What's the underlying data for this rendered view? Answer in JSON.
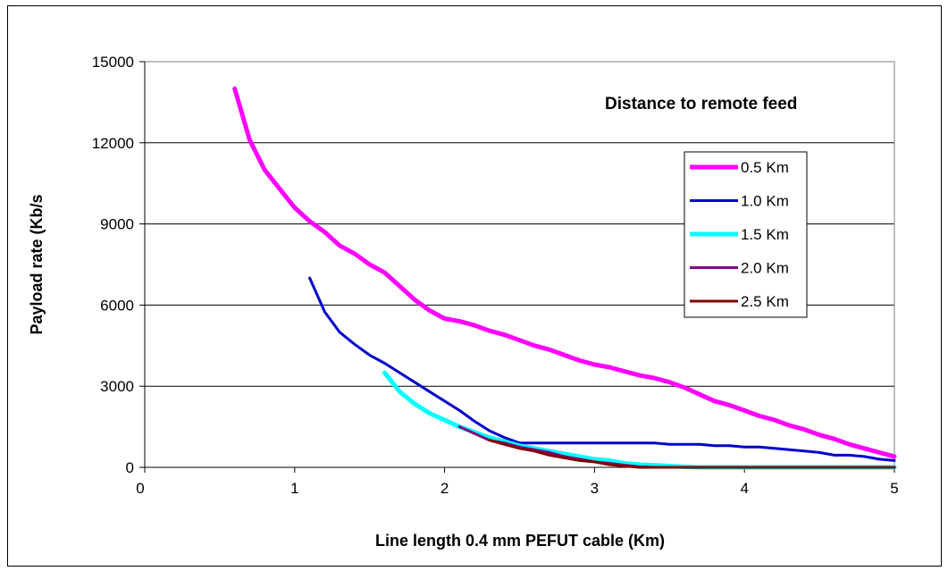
{
  "chart_data": {
    "type": "line",
    "title": "",
    "annotation": "Distance to remote feed",
    "xlabel": "Line length 0.4 mm PEFUT cable (Km)",
    "ylabel": "Payload rate (Kb/s",
    "xlim": [
      0,
      5
    ],
    "ylim": [
      0,
      15000
    ],
    "x_ticks": [
      "0",
      "1",
      "2",
      "3",
      "4",
      "5"
    ],
    "y_ticks": [
      "0",
      "3000",
      "6000",
      "9000",
      "12000",
      "15000"
    ],
    "grid": "horizontal",
    "legend_position": "right",
    "series": [
      {
        "name": "0.5 Km",
        "color": "#ff00ff",
        "x": [
          0.6,
          0.7,
          0.8,
          0.9,
          1.0,
          1.1,
          1.2,
          1.3,
          1.4,
          1.5,
          1.6,
          1.7,
          1.8,
          1.9,
          2.0,
          2.1,
          2.2,
          2.3,
          2.4,
          2.5,
          2.6,
          2.7,
          2.8,
          2.9,
          3.0,
          3.1,
          3.2,
          3.3,
          3.4,
          3.5,
          3.6,
          3.7,
          3.8,
          3.9,
          4.0,
          4.1,
          4.2,
          4.3,
          4.4,
          4.5,
          4.6,
          4.7,
          4.8,
          4.9,
          5.0
        ],
        "y": [
          14000,
          12100,
          11000,
          10300,
          9600,
          9100,
          8700,
          8200,
          7900,
          7500,
          7200,
          6700,
          6200,
          5800,
          5500,
          5400,
          5250,
          5050,
          4900,
          4700,
          4500,
          4350,
          4150,
          3950,
          3800,
          3700,
          3550,
          3400,
          3300,
          3150,
          2950,
          2700,
          2450,
          2300,
          2100,
          1900,
          1750,
          1550,
          1400,
          1200,
          1050,
          850,
          700,
          550,
          400
        ]
      },
      {
        "name": "1.0 Km",
        "color": "#0000cc",
        "x": [
          1.1,
          1.2,
          1.3,
          1.4,
          1.5,
          1.6,
          1.7,
          1.8,
          1.9,
          2.0,
          2.1,
          2.2,
          2.3,
          2.4,
          2.5,
          2.6,
          2.7,
          2.8,
          2.9,
          3.0,
          3.1,
          3.2,
          3.3,
          3.4,
          3.5,
          3.6,
          3.7,
          3.8,
          3.9,
          4.0,
          4.1,
          4.2,
          4.3,
          4.4,
          4.5,
          4.6,
          4.7,
          4.8,
          4.9,
          5.0
        ],
        "y": [
          7000,
          5750,
          5000,
          4550,
          4150,
          3850,
          3500,
          3150,
          2800,
          2450,
          2100,
          1700,
          1350,
          1100,
          900,
          900,
          900,
          900,
          900,
          900,
          900,
          900,
          900,
          900,
          850,
          850,
          850,
          800,
          800,
          750,
          750,
          700,
          650,
          600,
          550,
          450,
          450,
          400,
          300,
          250
        ]
      },
      {
        "name": "1.5 Km",
        "color": "#00ffff",
        "x": [
          1.6,
          1.7,
          1.8,
          1.9,
          2.0,
          2.1,
          2.2,
          2.3,
          2.4,
          2.5,
          2.6,
          2.7,
          2.8,
          2.9,
          3.0,
          3.1,
          3.2,
          3.3,
          3.4,
          3.5,
          3.6,
          3.7,
          3.8,
          3.9,
          4.0,
          4.1,
          4.2,
          4.3,
          4.4,
          4.5,
          4.6,
          4.7,
          4.8,
          4.9,
          5.0
        ],
        "y": [
          3500,
          2800,
          2350,
          2000,
          1750,
          1500,
          1300,
          1100,
          950,
          800,
          700,
          600,
          500,
          400,
          300,
          250,
          150,
          100,
          80,
          50,
          20,
          0,
          0,
          0,
          0,
          0,
          0,
          0,
          0,
          0,
          0,
          0,
          0,
          0,
          0
        ]
      },
      {
        "name": "2.0 Km",
        "color": "#800080",
        "x": [
          2.1,
          2.2,
          2.3,
          2.4,
          2.5,
          2.6,
          2.7,
          2.8,
          2.9,
          3.0,
          3.1,
          3.2,
          3.3,
          3.4,
          3.5,
          3.6,
          3.7,
          3.8,
          3.9,
          4.0,
          4.1,
          4.2,
          4.3,
          4.4,
          4.5,
          4.6,
          4.7,
          4.8,
          4.9,
          5.0
        ],
        "y": [
          1500,
          1250,
          1000,
          900,
          750,
          650,
          550,
          400,
          300,
          200,
          150,
          80,
          20,
          0,
          0,
          0,
          0,
          0,
          0,
          0,
          0,
          0,
          0,
          0,
          0,
          0,
          0,
          0,
          0,
          0
        ]
      },
      {
        "name": "2.5 Km",
        "color": "#800000",
        "x": [
          2.3,
          2.4,
          2.5,
          2.6,
          2.7,
          2.8,
          2.9,
          3.0,
          3.1,
          3.2,
          3.3,
          3.4,
          3.5,
          3.6,
          3.7,
          3.8,
          3.9,
          4.0,
          4.1,
          4.2,
          4.3,
          4.4,
          4.5,
          4.6,
          4.7,
          4.8,
          4.9,
          5.0
        ],
        "y": [
          1000,
          850,
          700,
          600,
          450,
          350,
          250,
          200,
          100,
          50,
          0,
          0,
          0,
          0,
          0,
          0,
          0,
          0,
          0,
          0,
          0,
          0,
          0,
          0,
          0,
          0,
          0,
          0
        ]
      }
    ]
  }
}
